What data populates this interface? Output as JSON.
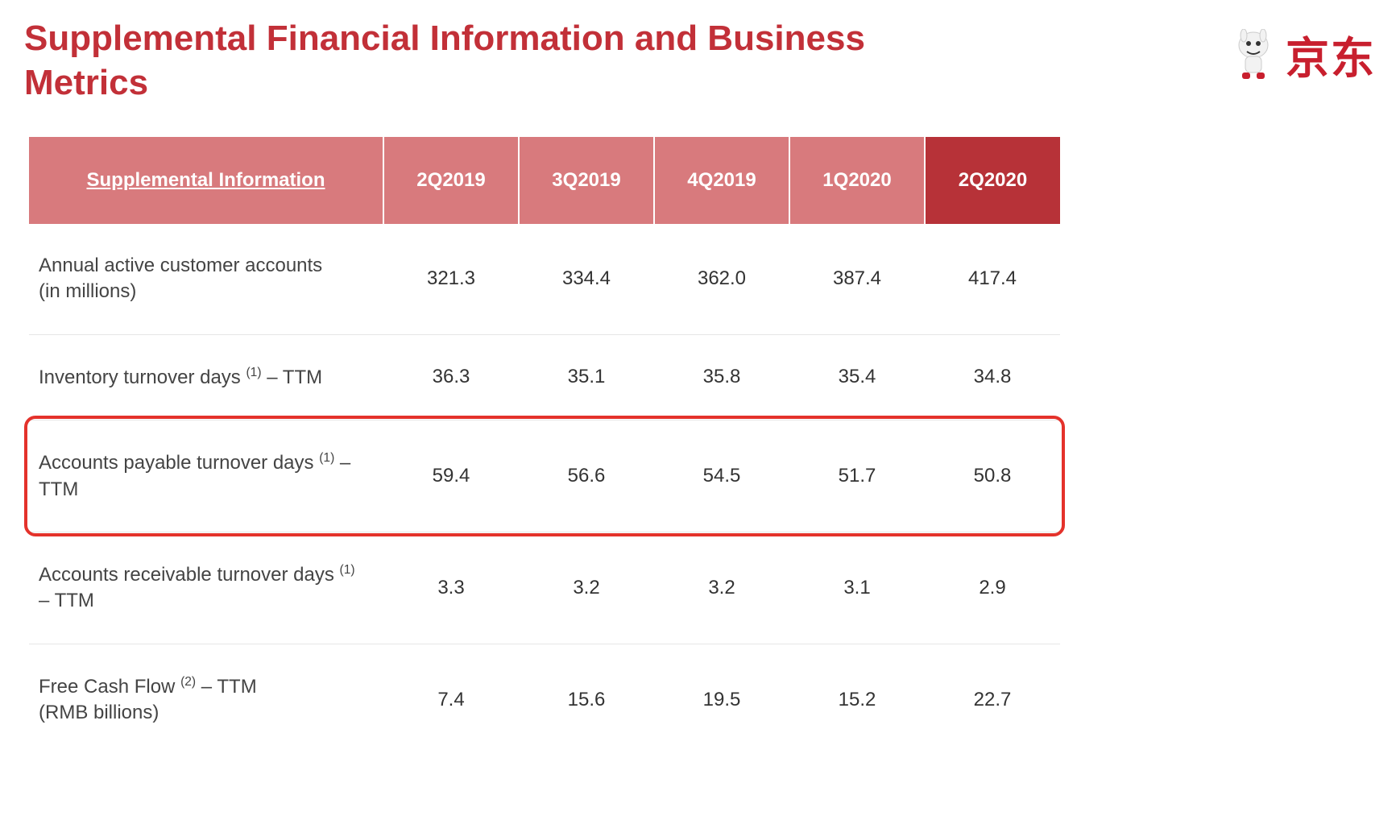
{
  "colors": {
    "brand_red": "#c81f2e",
    "header_bg": "#d87a7d",
    "header_bg_highlight": "#b73238",
    "title_color": "#c23038",
    "text_color": "#333333",
    "row_border": "#e6e6e6",
    "highlight_border": "#e4322b"
  },
  "title": "Supplemental Financial Information and Business Metrics",
  "logo_text": "京东",
  "table": {
    "header_first": "Supplemental Information",
    "columns": [
      "2Q2019",
      "3Q2019",
      "4Q2019",
      "1Q2020",
      "2Q2020"
    ],
    "highlight_column_index": 4,
    "highlight_row_index": 2,
    "rows": [
      {
        "label_html": "Annual active customer accounts<br>(in millions)",
        "values": [
          "321.3",
          "334.4",
          "362.0",
          "387.4",
          "417.4"
        ]
      },
      {
        "label_html": "Inventory turnover days <sup>(1)</sup> – TTM",
        "values": [
          "36.3",
          "35.1",
          "35.8",
          "35.4",
          "34.8"
        ]
      },
      {
        "label_html": "Accounts payable turnover days <sup>(1)</sup> – TTM",
        "values": [
          "59.4",
          "56.6",
          "54.5",
          "51.7",
          "50.8"
        ]
      },
      {
        "label_html": "Accounts receivable turnover days <sup>(1)</sup> – TTM",
        "values": [
          "3.3",
          "3.2",
          "3.2",
          "3.1",
          "2.9"
        ]
      },
      {
        "label_html": "Free Cash Flow <sup>(2)</sup> – TTM<br>(RMB billions)",
        "values": [
          "7.4",
          "15.6",
          "19.5",
          "15.2",
          "22.7"
        ]
      }
    ]
  }
}
